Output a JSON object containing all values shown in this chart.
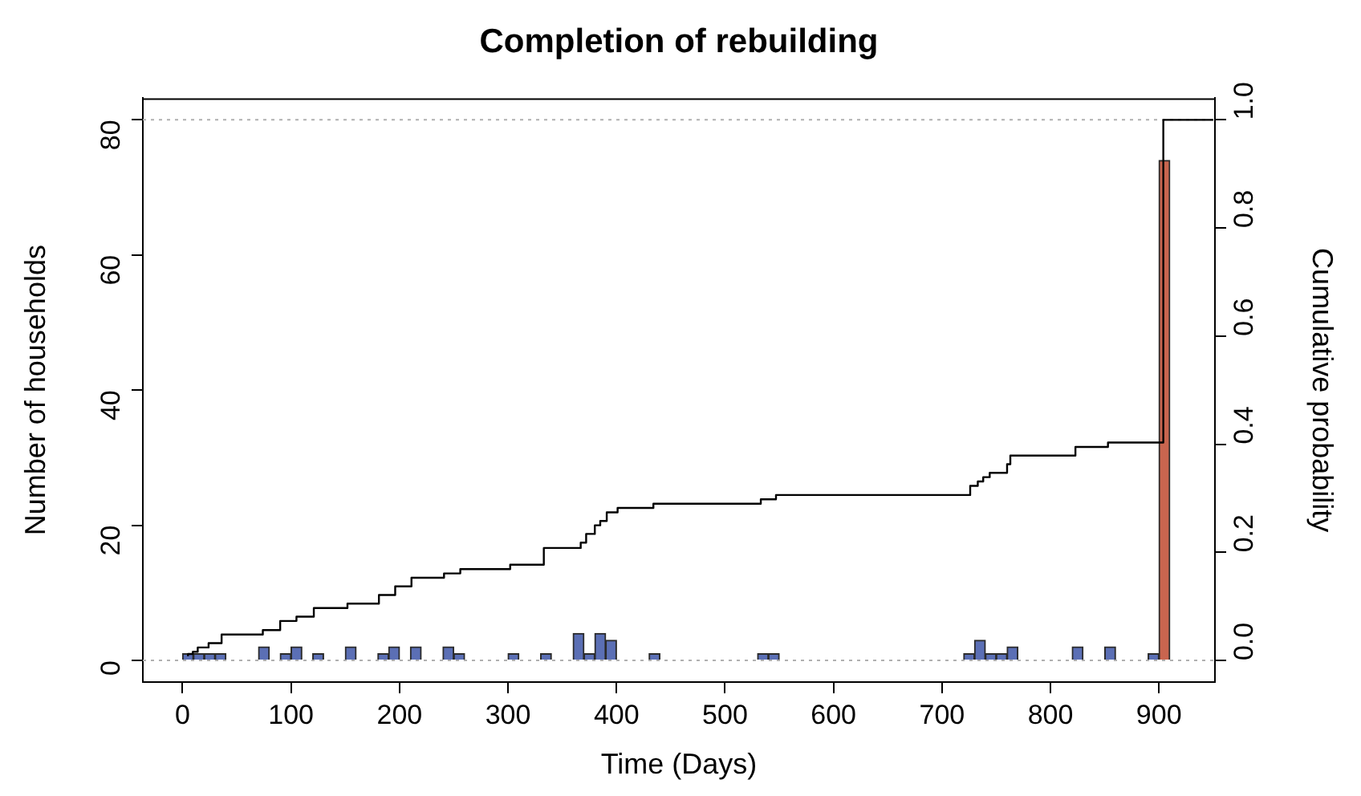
{
  "chart_data": {
    "type": "histogram",
    "title": "Completion of rebuilding",
    "xlabel": "Time (Days)",
    "ylabel": "Number of households",
    "y2label": "Cumulative probability",
    "bins": [
      0,
      10,
      20,
      30,
      40,
      50,
      60,
      70,
      80,
      90,
      100,
      110,
      120,
      130,
      140,
      150,
      160,
      170,
      180,
      190,
      200,
      210,
      220,
      230,
      240,
      250,
      260,
      270,
      280,
      290,
      300,
      310,
      320,
      330,
      340,
      350,
      360,
      370,
      380,
      390,
      400,
      410,
      420,
      430,
      440,
      450,
      460,
      470,
      480,
      490,
      500,
      510,
      520,
      530,
      540,
      550,
      560,
      570,
      580,
      590,
      600,
      610,
      620,
      630,
      640,
      650,
      660,
      670,
      680,
      690,
      700,
      710,
      720,
      730,
      740,
      750,
      760,
      770,
      780,
      790,
      800,
      810,
      820,
      830,
      840,
      850,
      860,
      870,
      880,
      890,
      900,
      910
    ],
    "values": [
      1,
      1,
      1,
      1,
      0,
      0,
      0,
      2,
      0,
      1,
      2,
      0,
      1,
      0,
      0,
      2,
      0,
      0,
      1,
      2,
      0,
      2,
      0,
      0,
      2,
      1,
      0,
      0,
      0,
      0,
      1,
      0,
      0,
      1,
      0,
      0,
      4,
      1,
      4,
      3,
      0,
      0,
      0,
      1,
      0,
      0,
      0,
      0,
      0,
      0,
      0,
      0,
      0,
      1,
      1,
      0,
      0,
      0,
      0,
      0,
      0,
      0,
      0,
      0,
      0,
      0,
      0,
      0,
      0,
      0,
      0,
      0,
      1,
      3,
      1,
      1,
      2,
      0,
      0,
      0,
      0,
      0,
      2,
      0,
      0,
      2,
      0,
      0,
      0,
      1,
      74
    ],
    "colors": [
      "#5b6fb5",
      "#5b6fb5",
      "#5b6fb5",
      "#5b6fb5",
      "#5b6fb5",
      "#5b6fb5",
      "#5b6fb5",
      "#5b6fb5",
      "#5b6fb5",
      "#5b6fb5",
      "#5b6fb5",
      "#5b6fb5",
      "#5b6fb5",
      "#5b6fb5",
      "#5b6fb5",
      "#5b6fb5",
      "#5b6fb5",
      "#5b6fb5",
      "#5b6fb5",
      "#5b6fb5",
      "#5b6fb5",
      "#5b6fb5",
      "#5b6fb5",
      "#5b6fb5",
      "#5b6fb5",
      "#5b6fb5",
      "#5b6fb5",
      "#5b6fb5",
      "#5b6fb5",
      "#5b6fb5",
      "#5b6fb5",
      "#5b6fb5",
      "#5b6fb5",
      "#5b6fb5",
      "#5b6fb5",
      "#5b6fb5",
      "#5b6fb5",
      "#5b6fb5",
      "#5b6fb5",
      "#5b6fb5",
      "#5b6fb5",
      "#5b6fb5",
      "#5b6fb5",
      "#5b6fb5",
      "#5b6fb5",
      "#5b6fb5",
      "#5b6fb5",
      "#5b6fb5",
      "#5b6fb5",
      "#5b6fb5",
      "#5b6fb5",
      "#5b6fb5",
      "#5b6fb5",
      "#5b6fb5",
      "#5b6fb5",
      "#5b6fb5",
      "#5b6fb5",
      "#5b6fb5",
      "#5b6fb5",
      "#5b6fb5",
      "#5b6fb5",
      "#5b6fb5",
      "#5b6fb5",
      "#5b6fb5",
      "#5b6fb5",
      "#5b6fb5",
      "#5b6fb5",
      "#5b6fb5",
      "#5b6fb5",
      "#5b6fb5",
      "#5b6fb5",
      "#5b6fb5",
      "#5b6fb5",
      "#5b6fb5",
      "#5b6fb5",
      "#5b6fb5",
      "#5b6fb5",
      "#5b6fb5",
      "#5b6fb5",
      "#5b6fb5",
      "#5b6fb5",
      "#5b6fb5",
      "#5b6fb5",
      "#5b6fb5",
      "#5b6fb5",
      "#5b6fb5",
      "#5b6fb5",
      "#5b6fb5",
      "#5b6fb5",
      "#5b6fb5",
      "#c9654f"
    ],
    "series": [
      {
        "type": "step",
        "axis": "y2",
        "color": "#000000",
        "x": [
          5,
          9.5,
          14,
          24,
          36,
          74,
          90,
          105,
          121,
          152,
          181,
          196,
          211,
          241,
          256,
          302,
          333,
          367,
          372,
          380,
          385,
          391,
          401,
          434,
          533,
          547,
          726,
          733,
          738,
          744,
          760,
          763,
          823,
          853,
          904,
          912,
          950
        ],
        "values": [
          0.008,
          0.012,
          0.016,
          0.024,
          0.032,
          0.048,
          0.056,
          0.073,
          0.081,
          0.097,
          0.105,
          0.121,
          0.137,
          0.153,
          0.161,
          0.169,
          0.177,
          0.208,
          0.218,
          0.234,
          0.25,
          0.258,
          0.274,
          0.282,
          0.29,
          0.298,
          0.306,
          0.323,
          0.331,
          0.339,
          0.347,
          0.363,
          0.379,
          0.395,
          0.403,
          1,
          1
        ]
      }
    ],
    "xlim": [
      -36.6,
      951.6
    ],
    "xticks": [
      0,
      100,
      200,
      300,
      400,
      500,
      600,
      700,
      800,
      900
    ],
    "ylim": [
      -3.2,
      83.2
    ],
    "yticks": [
      0,
      20,
      40,
      60,
      80
    ],
    "y2lim": [
      -0.04,
      1.04
    ],
    "y2ticks": [
      {
        "value": 0,
        "label": "0.0"
      },
      {
        "value": 0.2,
        "label": "0.2"
      },
      {
        "value": 0.4,
        "label": "0.4"
      },
      {
        "value": 0.6,
        "label": "0.6"
      },
      {
        "value": 0.8,
        "label": "0.8"
      },
      {
        "value": 1,
        "label": "1.0"
      }
    ],
    "ref_lines": [
      {
        "axis": "y",
        "value": 0,
        "color": "#b0b0b0",
        "line_style": "dotted"
      },
      {
        "axis": "y",
        "value": 80,
        "color": "#b0b0b0",
        "line_style": "dotted"
      }
    ],
    "grid": false,
    "legend": false
  }
}
